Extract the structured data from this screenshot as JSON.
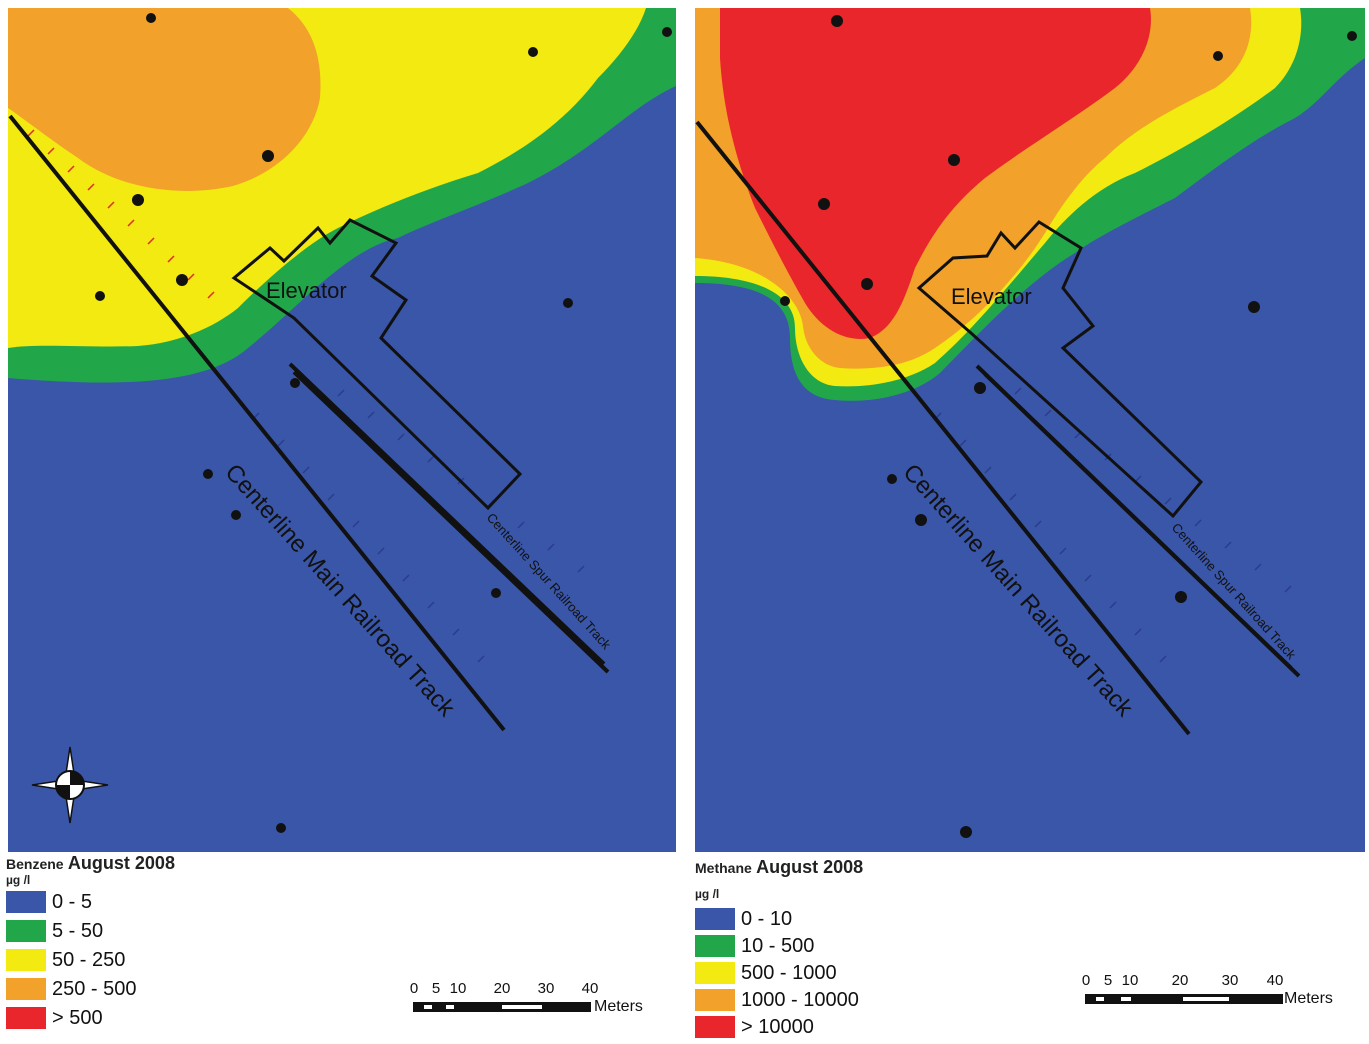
{
  "maps": {
    "left": {
      "legend_title": "Benzene",
      "legend_date": "August 2008",
      "legend_unit": "µg /l",
      "classes": [
        {
          "label": "0 - 5",
          "color": "#3a56a8"
        },
        {
          "label": "5 - 50",
          "color": "#22a64a"
        },
        {
          "label": "50 - 250",
          "color": "#f2ea10"
        },
        {
          "label": "250 - 500",
          "color": "#f2a12a"
        },
        {
          "label": "> 500",
          "color": "#e8262b"
        }
      ]
    },
    "right": {
      "legend_title": "Methane",
      "legend_date": "August 2008",
      "legend_unit": "µg /l",
      "classes": [
        {
          "label": "0 - 10",
          "color": "#3a56a8"
        },
        {
          "label": "10 - 500",
          "color": "#22a64a"
        },
        {
          "label": "500 - 1000",
          "color": "#f2ea10"
        },
        {
          "label": "1000 - 10000",
          "color": "#f2a12a"
        },
        {
          "label": "> 10000",
          "color": "#e8262b"
        }
      ]
    }
  },
  "labels": {
    "elevator": "Elevator",
    "main_track": "Centerline Main Railroad Track",
    "spur_track": "Centerline Spur Railroad Track"
  },
  "scale_bar": {
    "ticks": [
      "0",
      "5",
      "10",
      "20",
      "30",
      "40"
    ],
    "unit": "Meters"
  },
  "icons": {
    "north_arrow": "compass-rose-icon"
  }
}
